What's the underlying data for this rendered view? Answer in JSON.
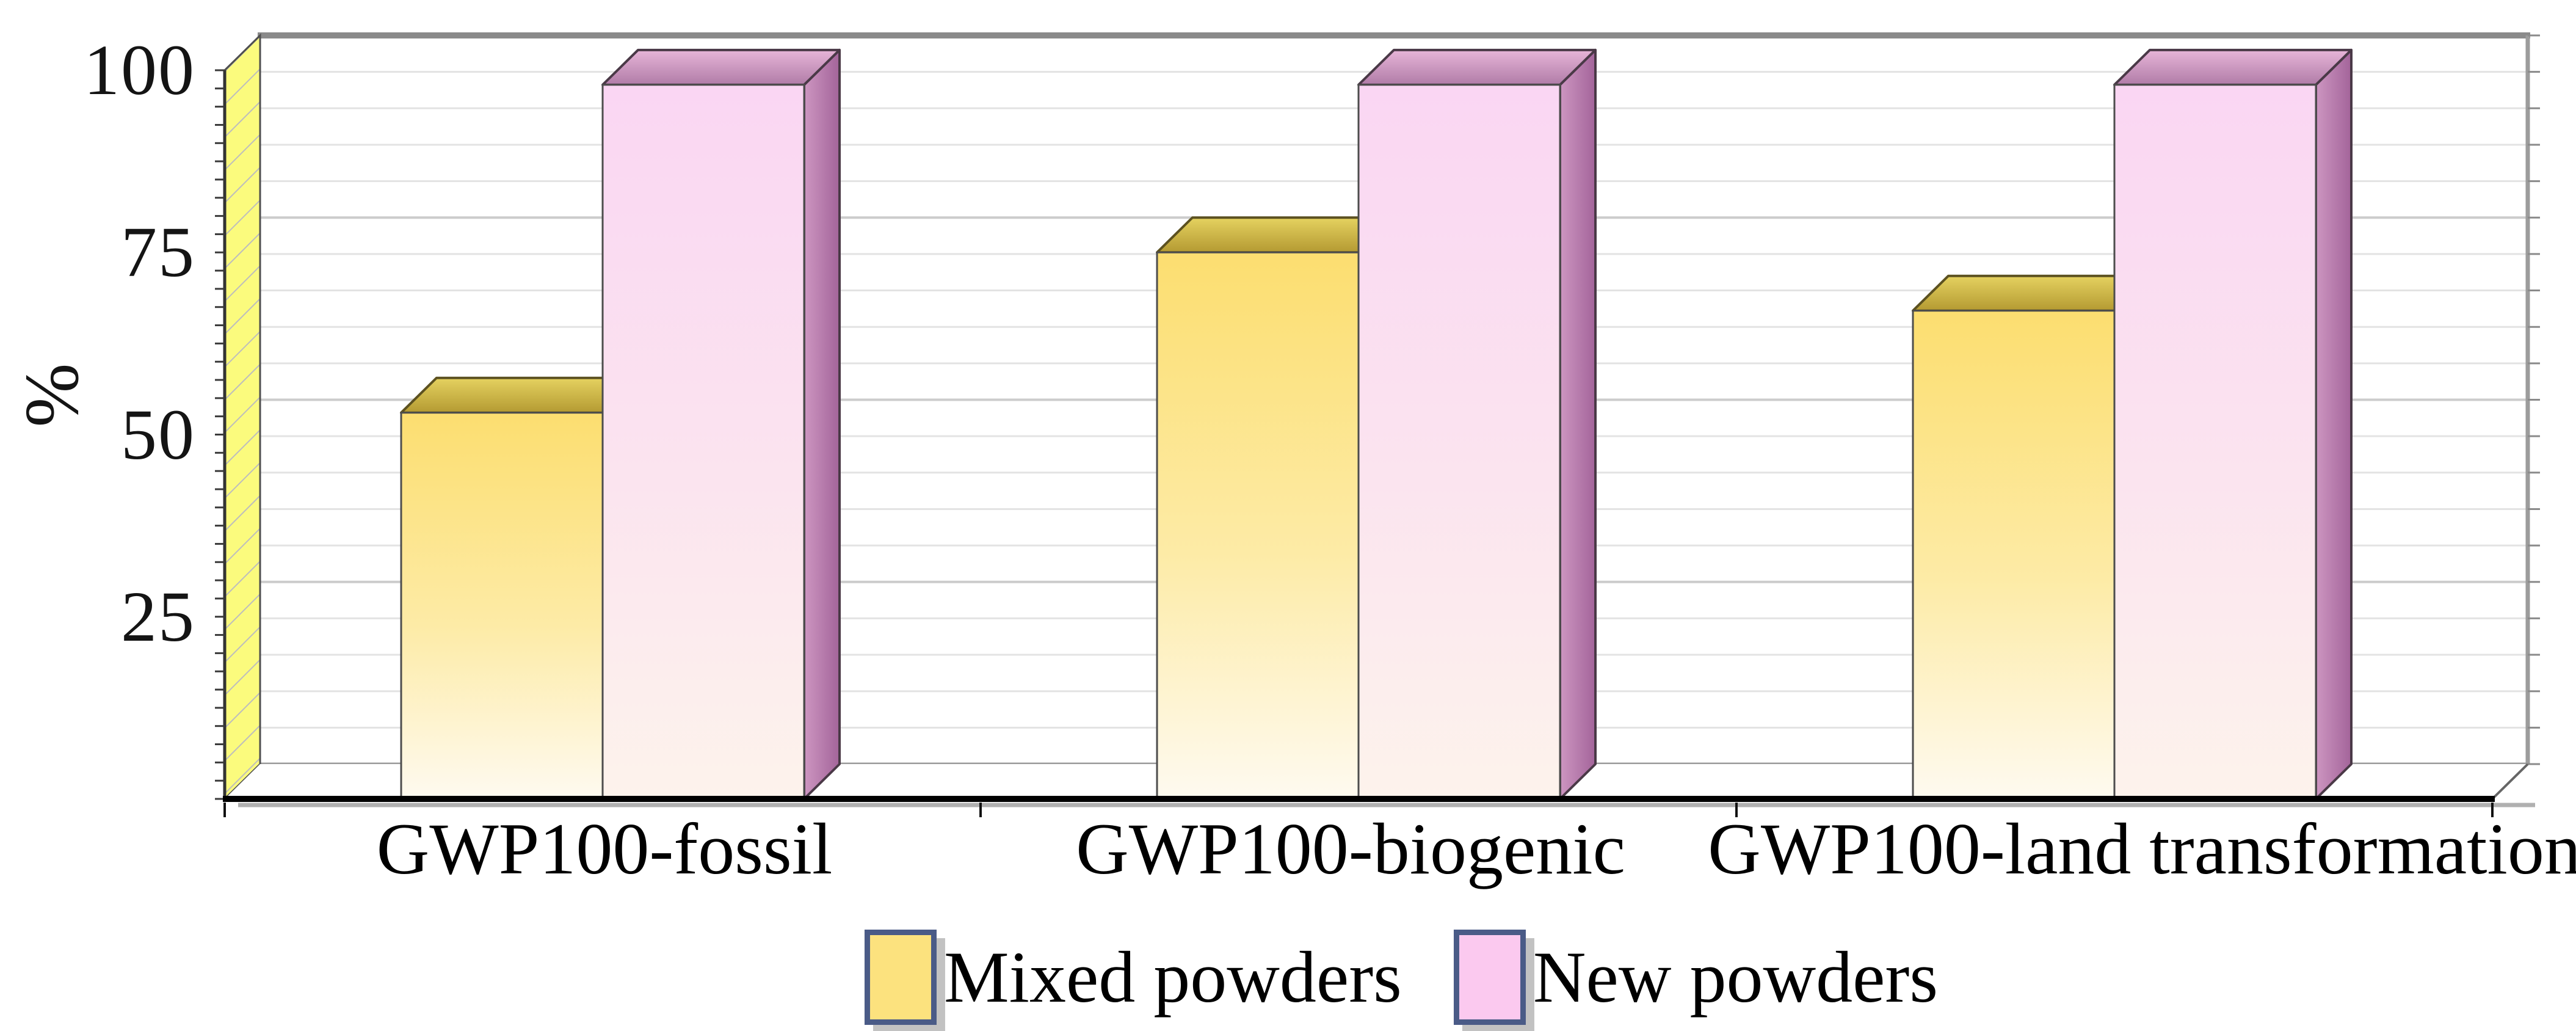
{
  "chart_data": {
    "type": "bar",
    "style": "3d-oblique-column-chart",
    "title": "",
    "xlabel": "",
    "ylabel": "%",
    "ylim": [
      0,
      100
    ],
    "yticks": [
      "100",
      "75",
      "50",
      "25"
    ],
    "grid_minor_step_pct": 5,
    "grid_on": true,
    "categories": [
      "GWP100-fossil",
      "GWP100-biogenic",
      "GWP100-land transformation"
    ],
    "series": [
      {
        "name": "Mixed powders",
        "values": [
          53,
          75,
          67
        ]
      },
      {
        "name": "New powders",
        "values": [
          98,
          98,
          98
        ]
      }
    ],
    "legend_position": "bottom-center"
  },
  "colors": {
    "background": "#ffffff",
    "axis_front": "#000000",
    "axis_shadow": "#b0b0b0",
    "wall_left_yellow": "#fbfb7d",
    "wall_hatch": "#bdbdbd",
    "wall_edge": "#4f4f4f",
    "back_wall": "#ffffff",
    "grid_minor": "#e3e3e3",
    "grid_major": "#cccccc",
    "frame_top": "#8a8a8a",
    "frame_right": "#9c9c9c",
    "mixed_front_top": "#fcde70",
    "mixed_front_mid": "#fdeba6",
    "mixed_front_bottom": "#fefaf0",
    "mixed_top_light": "#e5d260",
    "mixed_top_dark": "#b49a32",
    "mixed_outline": "#5c5120",
    "new_front_top": "#fad6f3",
    "new_front_mid": "#fbe4ef",
    "new_front_bottom": "#fdf3ec",
    "new_top_light": "#e7b5d8",
    "new_top_dark": "#b07ca7",
    "new_side_light": "#cd96c1",
    "new_side_dark": "#a3649a",
    "new_outline": "#4a3947",
    "legend_swatch_mixed": "#fce27e",
    "legend_swatch_new": "#fbc9ef",
    "legend_border": "#4a5b87",
    "text": "#000000"
  }
}
